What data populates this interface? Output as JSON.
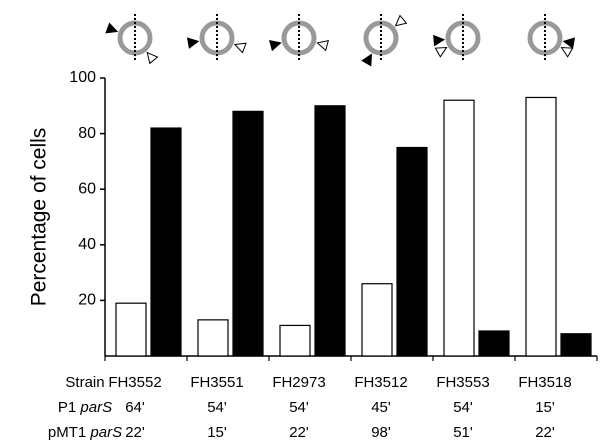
{
  "chart_data": {
    "type": "bar",
    "y_label": "Percentage of cells",
    "ylim": [
      0,
      100
    ],
    "yticks": [
      20,
      40,
      60,
      80,
      100
    ],
    "categories": [
      "FH3552",
      "FH3551",
      "FH2973",
      "FH3512",
      "FH3553",
      "FH3518"
    ],
    "category_label": "Strain",
    "series": [
      {
        "color": "#ffffff",
        "values": [
          19,
          13,
          11,
          26,
          92,
          93
        ]
      },
      {
        "color": "#000000",
        "values": [
          82,
          88,
          90,
          75,
          9,
          8
        ]
      }
    ],
    "rows": [
      {
        "label": "P1",
        "label_em": "parS",
        "values": [
          "64'",
          "54'",
          "54'",
          "45'",
          "54'",
          "15'"
        ]
      },
      {
        "label": "pMT1",
        "label_em": "parS",
        "values": [
          "22'",
          "15'",
          "22'",
          "98'",
          "51'",
          "22'"
        ]
      }
    ]
  }
}
